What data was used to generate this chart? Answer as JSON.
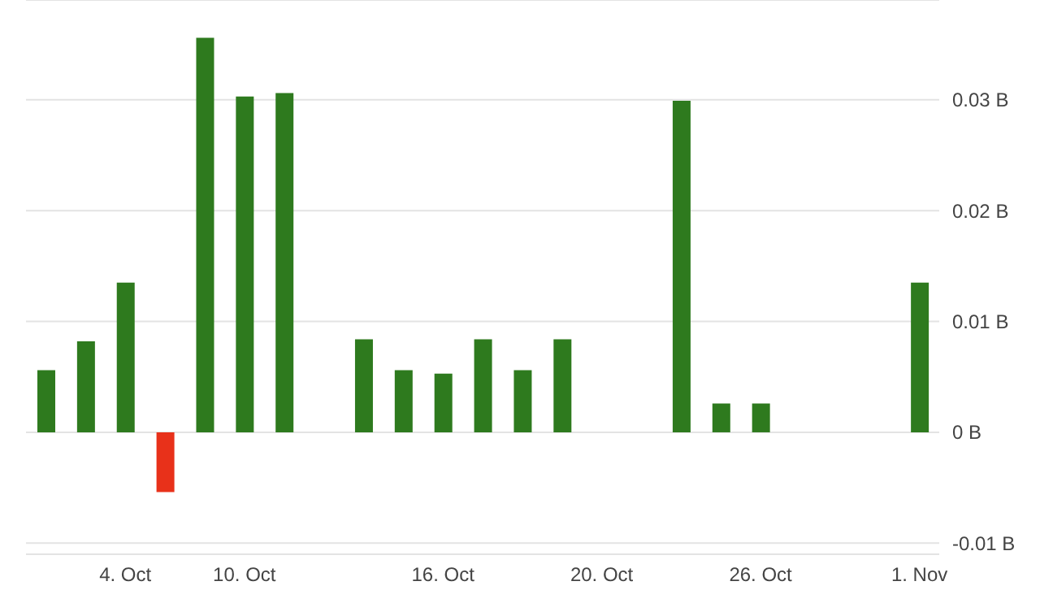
{
  "chart_data": {
    "type": "bar",
    "categories": [
      null,
      null,
      "4. Oct",
      null,
      null,
      "10. Oct",
      null,
      null,
      null,
      null,
      "16. Oct",
      null,
      null,
      null,
      "20. Oct",
      null,
      null,
      null,
      "26. Oct",
      null,
      null,
      null,
      "1. Nov"
    ],
    "values": [
      0.0056,
      0.0082,
      0.0135,
      -0.0054,
      0.0356,
      0.0303,
      0.0306,
      null,
      0.0084,
      0.0056,
      0.0053,
      0.0084,
      0.0056,
      0.0084,
      null,
      null,
      0.0299,
      0.0026,
      0.0026,
      null,
      null,
      null,
      0.0135
    ],
    "colors": [
      "#2e7a1e",
      "#2e7a1e",
      "#2e7a1e",
      "#e8311a",
      "#2e7a1e",
      "#2e7a1e",
      "#2e7a1e",
      null,
      "#2e7a1e",
      "#2e7a1e",
      "#2e7a1e",
      "#2e7a1e",
      "#2e7a1e",
      "#2e7a1e",
      null,
      null,
      "#2e7a1e",
      "#2e7a1e",
      "#2e7a1e",
      null,
      null,
      null,
      "#2e7a1e"
    ],
    "ylim": [
      -0.011,
      0.039
    ],
    "yticks": [
      {
        "value": -0.01,
        "label": "-0.01 B"
      },
      {
        "value": 0,
        "label": "0 B"
      },
      {
        "value": 0.01,
        "label": "0.01 B"
      },
      {
        "value": 0.02,
        "label": "0.02 B"
      },
      {
        "value": 0.03,
        "label": "0.03 B"
      }
    ],
    "grid": "y"
  }
}
